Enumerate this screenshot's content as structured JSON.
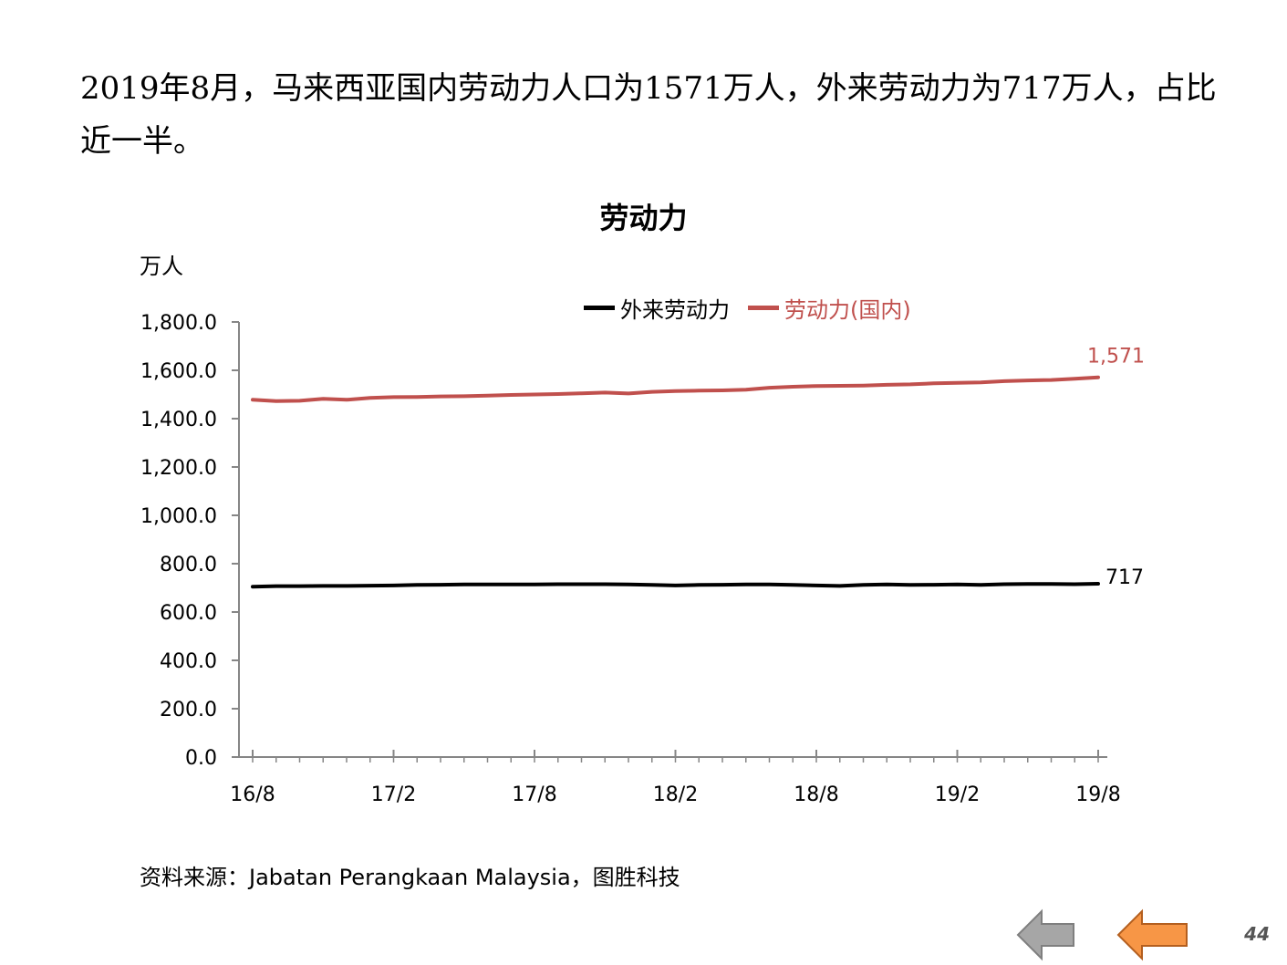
{
  "headline": "2019年8月，马来西亚国内劳动力人口为1571万人，外来劳动力为717万人，占比近一半。",
  "chart_data": {
    "type": "line",
    "title": "劳动力",
    "ylabel": "万人",
    "ylim": [
      0,
      1800
    ],
    "yticks": [
      "1,800.0",
      "1,600.0",
      "1,400.0",
      "1,200.0",
      "1,000.0",
      "800.0",
      "600.0",
      "400.0",
      "200.0",
      "0.0"
    ],
    "ytick_values": [
      1800,
      1600,
      1400,
      1200,
      1000,
      800,
      600,
      400,
      200,
      0
    ],
    "xtick_labels": [
      "16/8",
      "17/2",
      "17/8",
      "18/2",
      "18/8",
      "19/2",
      "19/8"
    ],
    "x": [
      "16/8",
      "16/9",
      "16/10",
      "16/11",
      "16/12",
      "17/1",
      "17/2",
      "17/3",
      "17/4",
      "17/5",
      "17/6",
      "17/7",
      "17/8",
      "17/9",
      "17/10",
      "17/11",
      "17/12",
      "18/1",
      "18/2",
      "18/3",
      "18/4",
      "18/5",
      "18/6",
      "18/7",
      "18/8",
      "18/9",
      "18/10",
      "18/11",
      "18/12",
      "19/1",
      "19/2",
      "19/3",
      "19/4",
      "19/5",
      "19/6",
      "19/7",
      "19/8"
    ],
    "grid": false,
    "legend_position": "top-right",
    "series": [
      {
        "name": "外来劳动力",
        "color": "#000000",
        "values": [
          705,
          707,
          707,
          708,
          708,
          709,
          710,
          712,
          713,
          714,
          714,
          714,
          714,
          715,
          715,
          715,
          714,
          712,
          710,
          712,
          713,
          714,
          714,
          712,
          710,
          708,
          712,
          714,
          712,
          713,
          714,
          712,
          715,
          716,
          716,
          715,
          717
        ],
        "end_label": "717"
      },
      {
        "name": "劳动力(国内)",
        "color": "#c0504d",
        "values": [
          1478,
          1473,
          1474,
          1482,
          1478,
          1486,
          1489,
          1490,
          1492,
          1493,
          1495,
          1498,
          1500,
          1502,
          1505,
          1508,
          1504,
          1511,
          1514,
          1516,
          1517,
          1520,
          1528,
          1532,
          1535,
          1536,
          1537,
          1540,
          1542,
          1546,
          1548,
          1550,
          1555,
          1558,
          1560,
          1565,
          1571
        ],
        "end_label": "1,571"
      }
    ]
  },
  "source": "资料来源：Jabatan Perangkaan Malaysia，图胜科技",
  "nav": {
    "back_color": "#a6a6a6",
    "forward_color": "#f79646"
  },
  "page_number": "44"
}
